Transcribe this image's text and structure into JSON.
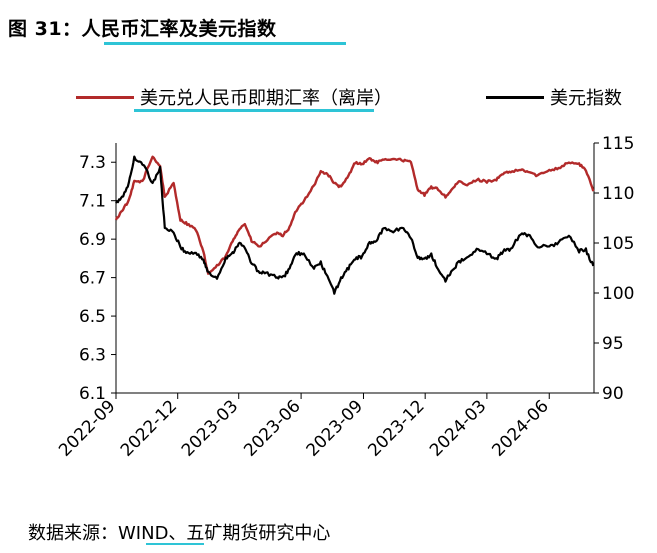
{
  "figure": {
    "title": "图 31：人民币汇率及美元指数",
    "source": "数据来源：WIND、五矿期货研究中心"
  },
  "colors": {
    "cny": "#b22a2a",
    "dxy": "#000000",
    "accent_underline": "#2ec4d6"
  },
  "chart_data": {
    "type": "line",
    "title": "人民币汇率及美元指数",
    "x_type": "date",
    "x_ticks": [
      "2022-09",
      "2022-12",
      "2023-03",
      "2023-06",
      "2023-09",
      "2023-12",
      "2024-03",
      "2024-06"
    ],
    "y_left": {
      "range": [
        6.1,
        7.4
      ],
      "ticks": [
        "7.3",
        "7.1",
        "6.9",
        "6.7",
        "6.5",
        "6.3",
        "6.1"
      ]
    },
    "y_right": {
      "range": [
        90,
        115
      ],
      "ticks": [
        "115",
        "110",
        "105",
        "100",
        "95",
        "90"
      ]
    },
    "legend_placement": "top",
    "grid": false,
    "series": [
      {
        "name": "美元兑人民币即期汇率（离岸）",
        "axis": "left",
        "color": "#b22a2a",
        "points": [
          [
            "2022-09-01",
            7.0
          ],
          [
            "2022-09-10",
            7.05
          ],
          [
            "2022-09-20",
            7.1
          ],
          [
            "2022-09-28",
            7.2
          ],
          [
            "2022-10-10",
            7.2
          ],
          [
            "2022-10-25",
            7.33
          ],
          [
            "2022-11-05",
            7.28
          ],
          [
            "2022-11-12",
            7.12
          ],
          [
            "2022-11-25",
            7.19
          ],
          [
            "2022-12-05",
            7.0
          ],
          [
            "2022-12-15",
            6.98
          ],
          [
            "2022-12-28",
            6.95
          ],
          [
            "2023-01-08",
            6.83
          ],
          [
            "2023-01-15",
            6.72
          ],
          [
            "2023-01-28",
            6.76
          ],
          [
            "2023-02-10",
            6.81
          ],
          [
            "2023-02-20",
            6.89
          ],
          [
            "2023-03-01",
            6.95
          ],
          [
            "2023-03-10",
            6.98
          ],
          [
            "2023-03-20",
            6.89
          ],
          [
            "2023-04-01",
            6.86
          ],
          [
            "2023-04-10",
            6.89
          ],
          [
            "2023-04-25",
            6.93
          ],
          [
            "2023-05-05",
            6.92
          ],
          [
            "2023-05-15",
            6.96
          ],
          [
            "2023-05-25",
            7.05
          ],
          [
            "2023-06-05",
            7.1
          ],
          [
            "2023-06-20",
            7.18
          ],
          [
            "2023-06-30",
            7.25
          ],
          [
            "2023-07-10",
            7.24
          ],
          [
            "2023-07-20",
            7.19
          ],
          [
            "2023-07-30",
            7.17
          ],
          [
            "2023-08-10",
            7.23
          ],
          [
            "2023-08-20",
            7.3
          ],
          [
            "2023-08-30",
            7.29
          ],
          [
            "2023-09-10",
            7.32
          ],
          [
            "2023-09-20",
            7.3
          ],
          [
            "2023-10-01",
            7.31
          ],
          [
            "2023-10-15",
            7.32
          ],
          [
            "2023-10-30",
            7.31
          ],
          [
            "2023-11-10",
            7.3
          ],
          [
            "2023-11-20",
            7.16
          ],
          [
            "2023-11-30",
            7.13
          ],
          [
            "2023-12-10",
            7.17
          ],
          [
            "2023-12-20",
            7.16
          ],
          [
            "2023-12-31",
            7.12
          ],
          [
            "2024-01-10",
            7.16
          ],
          [
            "2024-01-20",
            7.2
          ],
          [
            "2024-02-01",
            7.18
          ],
          [
            "2024-02-15",
            7.21
          ],
          [
            "2024-03-01",
            7.2
          ],
          [
            "2024-03-15",
            7.21
          ],
          [
            "2024-03-25",
            7.24
          ],
          [
            "2024-04-05",
            7.25
          ],
          [
            "2024-04-20",
            7.26
          ],
          [
            "2024-05-01",
            7.25
          ],
          [
            "2024-05-15",
            7.23
          ],
          [
            "2024-06-01",
            7.26
          ],
          [
            "2024-06-15",
            7.27
          ],
          [
            "2024-06-30",
            7.3
          ],
          [
            "2024-07-15",
            7.29
          ],
          [
            "2024-07-25",
            7.26
          ],
          [
            "2024-08-05",
            7.15
          ]
        ]
      },
      {
        "name": "美元指数",
        "axis": "right",
        "color": "#000000",
        "points": [
          [
            "2022-09-01",
            109.0
          ],
          [
            "2022-09-10",
            109.5
          ],
          [
            "2022-09-20",
            111.0
          ],
          [
            "2022-09-28",
            113.5
          ],
          [
            "2022-10-10",
            113.0
          ],
          [
            "2022-10-25",
            111.0
          ],
          [
            "2022-11-05",
            112.5
          ],
          [
            "2022-11-12",
            106.5
          ],
          [
            "2022-11-25",
            106.0
          ],
          [
            "2022-12-05",
            104.6
          ],
          [
            "2022-12-15",
            104.0
          ],
          [
            "2022-12-28",
            104.0
          ],
          [
            "2023-01-08",
            103.3
          ],
          [
            "2023-01-15",
            102.0
          ],
          [
            "2023-01-28",
            101.5
          ],
          [
            "2023-02-10",
            103.5
          ],
          [
            "2023-02-20",
            104.0
          ],
          [
            "2023-03-01",
            105.0
          ],
          [
            "2023-03-10",
            104.5
          ],
          [
            "2023-03-20",
            103.0
          ],
          [
            "2023-04-01",
            102.0
          ],
          [
            "2023-04-10",
            102.0
          ],
          [
            "2023-04-25",
            101.6
          ],
          [
            "2023-05-05",
            101.5
          ],
          [
            "2023-05-15",
            102.5
          ],
          [
            "2023-05-25",
            104.0
          ],
          [
            "2023-06-05",
            103.8
          ],
          [
            "2023-06-20",
            102.5
          ],
          [
            "2023-06-30",
            103.0
          ],
          [
            "2023-07-10",
            101.6
          ],
          [
            "2023-07-20",
            100.0
          ],
          [
            "2023-07-30",
            101.5
          ],
          [
            "2023-08-10",
            102.5
          ],
          [
            "2023-08-20",
            103.5
          ],
          [
            "2023-08-30",
            103.6
          ],
          [
            "2023-09-10",
            105.0
          ],
          [
            "2023-09-20",
            105.2
          ],
          [
            "2023-10-01",
            106.5
          ],
          [
            "2023-10-15",
            106.2
          ],
          [
            "2023-10-30",
            106.5
          ],
          [
            "2023-11-10",
            105.5
          ],
          [
            "2023-11-20",
            103.6
          ],
          [
            "2023-11-30",
            103.3
          ],
          [
            "2023-12-10",
            103.9
          ],
          [
            "2023-12-20",
            102.3
          ],
          [
            "2023-12-31",
            101.3
          ],
          [
            "2024-01-10",
            102.3
          ],
          [
            "2024-01-20",
            103.1
          ],
          [
            "2024-02-01",
            103.5
          ],
          [
            "2024-02-15",
            104.3
          ],
          [
            "2024-03-01",
            104.0
          ],
          [
            "2024-03-15",
            103.4
          ],
          [
            "2024-03-25",
            104.2
          ],
          [
            "2024-04-05",
            104.3
          ],
          [
            "2024-04-20",
            106.0
          ],
          [
            "2024-05-01",
            105.8
          ],
          [
            "2024-05-15",
            104.7
          ],
          [
            "2024-06-01",
            104.6
          ],
          [
            "2024-06-15",
            105.1
          ],
          [
            "2024-06-30",
            105.7
          ],
          [
            "2024-07-15",
            104.2
          ],
          [
            "2024-07-25",
            104.3
          ],
          [
            "2024-08-05",
            102.7
          ]
        ]
      }
    ]
  }
}
